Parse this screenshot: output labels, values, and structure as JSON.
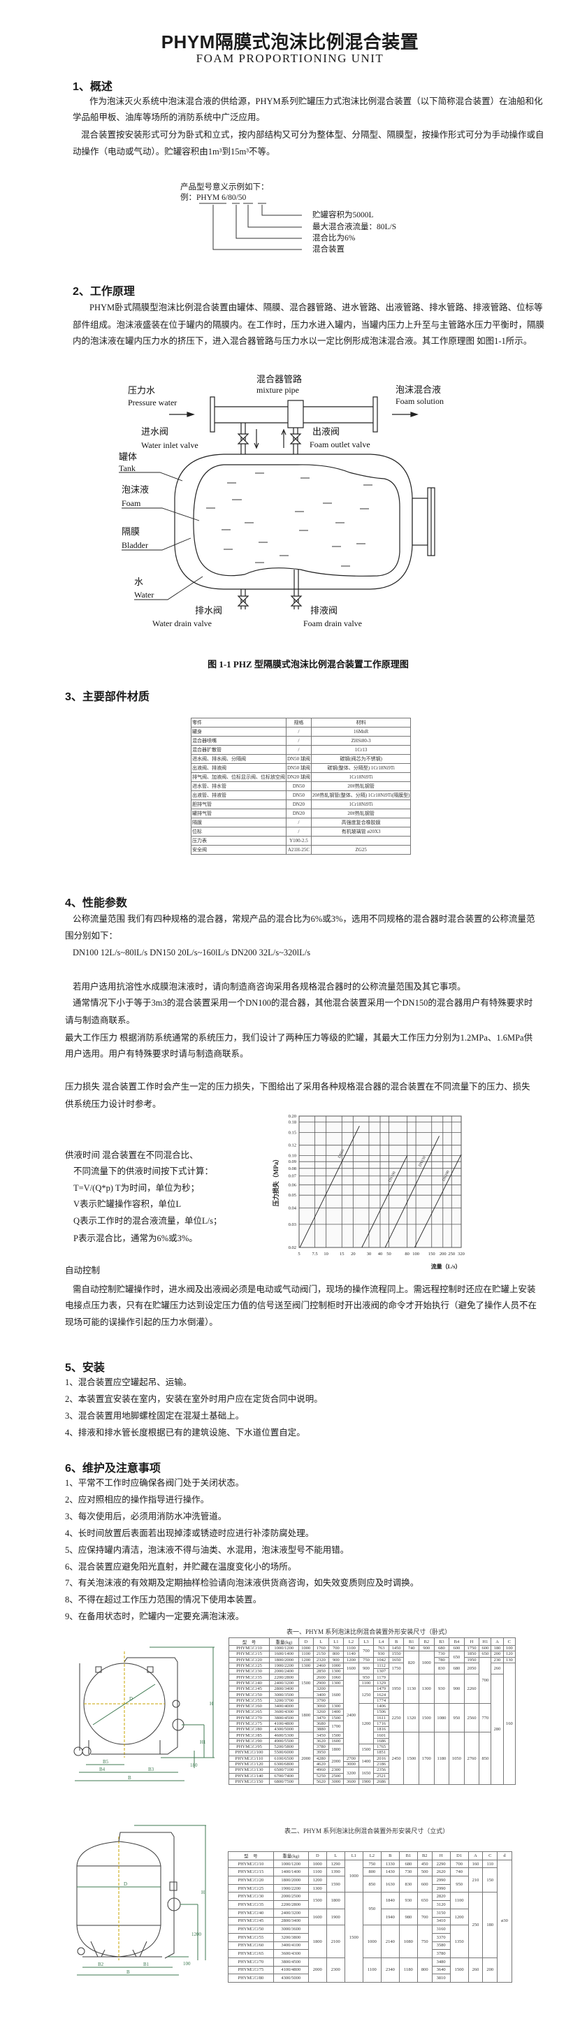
{
  "header": {
    "title": "PHYM隔膜式泡沫比例混合装置",
    "subtitle": "FOAM PROPORTIONING UNIT"
  },
  "s1": {
    "heading": "1、概述",
    "lines": [
      "作为泡沫灭火系统中泡沫混合液的供给源，PHYM系列贮罐压力式泡沫比例混合装置（以下简称混合装置）在油船和化",
      "学品船甲板、油库等场所的消防系统中广泛应用。",
      "混合装置按安装形式可分为卧式和立式，按内部结构又可分为整体型、分隔型、隔膜型，按操作形式可分为手动操作或自",
      "动操作（电动或气动）。贮罐容积由1m³到15m³不等。"
    ],
    "model": {
      "intro": "产品型号意义示例如下：",
      "example_prefix": "例：",
      "example_code": "PHYM",
      "example_ratio": "6",
      "example_flow": "80",
      "example_volume": "50",
      "items": [
        "贮罐容积为5000L",
        "最大混合液流量：80L/S",
        "混合比为6%",
        "混合装置"
      ]
    }
  },
  "s2": {
    "heading": "2、工作原理",
    "lines": [
      "PHYM卧式隔膜型泡沫比例混合装置由罐体、隔膜、混合器管路、进水管路、出液管路、排水管路、排液管路、位标等",
      "部件组成。泡沫液盛装在位于罐内的隔膜内。在工作时，压力水进入罐内，当罐内压力上升至与主管路水压力平衡时，隔膜",
      "内的泡沫液在罐内压力水的挤压下，进入混合器管路与压力水以一定比例形成泡沫混合液。其工作原理图 如图1-1所示。"
    ],
    "diagram": {
      "pressure_water_cn": "压力水",
      "pressure_water_en": "Pressure water",
      "mixture_pipe_cn": "混合器管路",
      "mixture_pipe_en": "mixture pipe",
      "foam_solution_cn": "泡沫混合液",
      "foam_solution_en": "Foam solution",
      "inlet_valve_cn": "进水阀",
      "inlet_valve_en": "Water inlet valve",
      "outlet_valve_cn": "出液阀",
      "outlet_valve_en": "Foam outlet valve",
      "tank_cn": "罐体",
      "tank_en": "Tank",
      "foam_cn": "泡沫液",
      "foam_en": "Foam",
      "bladder_cn": "隔膜",
      "bladder_en": "Bladder",
      "water_cn": "水",
      "water_en": "Water",
      "water_drain_cn": "排水阀",
      "water_drain_en": "Water drain valve",
      "foam_drain_cn": "排液阀",
      "foam_drain_en": "Foam drain valve",
      "caption": "图 1-1 PHZ 型隔膜式泡沫比例混合装置工作原理图"
    }
  },
  "s3": {
    "heading": "3、主要部件材质",
    "table": {
      "header": [
        "零件",
        "规格",
        "材料"
      ],
      "rows": [
        [
          "罐身",
          "/",
          "16MnR"
        ],
        [
          "混合器喷嘴",
          "/",
          "ZHSi80-3"
        ],
        [
          "混合器扩散管",
          "/",
          "1Cr13"
        ],
        [
          "进水阀、排水阀、分隔阀",
          "DN50 球阀",
          "碳钢(阀芯为不锈钢)"
        ],
        [
          "出液阀、排液阀",
          "DN50 球阀",
          "碳钢(整体、分隔型) 1Cr18Ni9Ti"
        ],
        [
          "排气阀、加液阀、位标显示阀、位标放空阀",
          "DN20 球阀",
          "1Cr18Ni9Ti"
        ],
        [
          "进水管、排水管",
          "DN50",
          "20#热轧钢管"
        ],
        [
          "出液管、排液管",
          "DN50",
          "20#热轧钢管(整体、分隔) 1Cr18Ni9Ti(隔膜型)"
        ],
        [
          "胆排气管",
          "DN20",
          "1Cr18Ni9Ti"
        ],
        [
          "罐排气管",
          "DN20",
          "20#热轧钢管"
        ],
        [
          "隔膜",
          "/",
          "高强度复合橡胶膜"
        ],
        [
          "位标",
          "/",
          "有机玻璃管 ø20X3"
        ],
        [
          "压力表",
          "Y100-2.5",
          ""
        ],
        [
          "安全阀",
          "A21H-25C",
          "ZG25"
        ]
      ]
    }
  },
  "s4": {
    "heading": "4、性能参数",
    "lines": [
      "公称流量范围  我们有四种规格的混合器，常规产品的混合比为6%或3%，选用不同规格的混合器时混合装置的公称流量范",
      "围分别如下：",
      "DN100  12L/s~80lL/s   DN150  20L/s~160lL/s   DN200  32L/s~320lL/s",
      "若用户选用抗溶性水成膜泡沫液时，请向制造商咨询采用各规格混合器时的公称流量范围及其它事项。",
      "通常情况下小于等于3m3的混合装置采用一个DN100的混合器，其他混合装置采用一个DN150的混合器用户有特殊要求时",
      "请与制造商联系。",
      "最大工作压力  根据消防系统通常的系统压力，我们设计了两种压力等级的贮罐，其最大工作压力分别为1.2MPa、1.6MPa供",
      "用户选用。用户有特殊要求时请与制造商联系。",
      "压力损失  混合装置工作时会产生一定的压力损失，下图给出了采用各种规格混合器的混合装置在不同流量下的压力、损失",
      "供系统压力设计时参考。"
    ],
    "supply": [
      "供液时间  混合装置在不同混合比、",
      "不同流量下的供液时间按下式计算：",
      "T=V/(Q*p)     T为时间，单位为秒；",
      "V表示贮罐操作容积，单位L",
      "Q表示工作时的混合液流量，单位L/s；",
      "P表示混合比，通常为6%或3%。"
    ],
    "auto_heading": "自动控制",
    "auto_lines": [
      "需自动控制贮罐操作时，进水阀及出液阀必须是电动或气动阀门，现场的操作流程同上。需远程控制时还应在贮罐上安装",
      "电接点压力表，只有在贮罐压力达到设定压力值的信号送至阀门控制柜时开出液阀的命令才开始执行（避免了操作人员不在",
      "现场可能的误操作引起的压力水倒灌）。"
    ]
  },
  "chart_data": {
    "type": "line",
    "title": "",
    "xlabel": "流量（L/s）",
    "ylabel": "压力损失（MPa）",
    "xscale": "log",
    "yscale": "log",
    "xlim": [
      5,
      320
    ],
    "ylim": [
      0.02,
      0.2
    ],
    "grid": true,
    "xticks": [
      5,
      7.5,
      10,
      15,
      20,
      30,
      40,
      50,
      80,
      100,
      150,
      200,
      250,
      320
    ],
    "xtick_labels": [
      "5",
      "7.5",
      "10",
      "15",
      "20",
      "30",
      "40",
      "50",
      "80",
      "100",
      "150",
      "200",
      "250",
      "320"
    ],
    "yticks": [
      0.02,
      0.03,
      0.04,
      0.05,
      0.06,
      0.07,
      0.08,
      0.09,
      0.1,
      0.12,
      0.15,
      0.18,
      0.2
    ],
    "ytick_labels": [
      "0.02",
      "0.03",
      "0.04",
      "0.05",
      "0.06",
      "0.07",
      "0.08",
      "0.09",
      "0.10",
      "0.12",
      "0.15",
      "0.18",
      "0.20"
    ],
    "series": [
      {
        "name": "DN65",
        "points": [
          [
            5.1,
            0.02
          ],
          [
            23.5,
            0.168
          ]
        ]
      },
      {
        "name": "DN100",
        "points": [
          [
            25,
            0.02
          ],
          [
            80,
            0.1
          ]
        ]
      },
      {
        "name": "DN150",
        "points": [
          [
            45.5,
            0.02
          ],
          [
            182,
            0.141
          ]
        ]
      },
      {
        "name": "DN200",
        "points": [
          [
            97,
            0.02
          ],
          [
            320,
            0.102
          ]
        ]
      }
    ]
  },
  "s5": {
    "heading": "5、安装",
    "items": [
      "1、混合装置应空罐起吊、运输。",
      "2、本装置宜安装在室内，安装在室外时用户应在定货合同中说明。",
      "3、混合装置用地脚螺栓固定在混凝土基础上。",
      "4、排液和排水管长度根据已有的建筑设施、下水道位置自定。"
    ]
  },
  "s6": {
    "heading": "6、维护及注意事项",
    "items": [
      "1、平常不工作时应确保各阀门处于关闭状态。",
      "2、应对照相应的操作指导进行操作。",
      "3、每次使用后，必须用消防水冲洗管道。",
      "4、长时间放置后表面若出现掉漆或锈迹时应进行补漆防腐处理。",
      "5、应保持罐内清洁，泡沫液不得与油类、水混用，泡沫液型号不能用错。",
      "6、混合装置应避免阳光直射，并贮藏在温度变化小的场所。",
      "7、有关泡沫液的有效期及定期抽样检验请向泡沫液供货商咨询，如失效变质则应及时调换。",
      "8、不得在超过工作压力范围的情况下使用本装置。",
      "9、在备用状态时，贮罐内一定要充满泡沫液。"
    ]
  },
  "table1": {
    "caption": "表一、PHYM 系列泡沫比例混合装置外形安装尺寸（卧式）",
    "header": [
      "型　号",
      "重量(kg)",
      "D",
      "L",
      "L1",
      "L2",
      "L3",
      "L4",
      "B",
      "B1",
      "B2",
      "B3",
      "B4",
      "H",
      "H1",
      "A",
      "C"
    ],
    "rows": [
      [
        "PHYM□/□/10",
        "1000/1200",
        "1000",
        "1760",
        "700",
        "1100",
        "700",
        "763",
        "1450",
        "740",
        "900",
        "680",
        "600",
        "1750",
        "600",
        "180",
        "100"
      ],
      [
        "PHYM□/□/15",
        "1600/1400",
        "1100",
        "2150",
        "800",
        "1140",
        null,
        "930",
        "1550",
        "820",
        "1000",
        "730",
        "650",
        "1850",
        "650",
        "200",
        "120"
      ],
      [
        "PHYM□/□/20",
        "1800/2000",
        "1200",
        "2320",
        "900",
        "1200",
        "750",
        "1042",
        "1650",
        null,
        null,
        "780",
        null,
        "1950",
        "700",
        "230",
        "130"
      ],
      [
        "PHYM□/□/25",
        "1900/2200",
        "1300",
        "2460",
        "1000",
        "1600",
        "900",
        "1112",
        "1750",
        null,
        null,
        "830",
        "680",
        "2050",
        null,
        "260",
        "160"
      ],
      [
        "PHYM□/□/30",
        "2000/2400",
        "1500",
        "2850",
        "1300",
        null,
        null,
        "1307",
        null,
        null,
        null,
        null,
        null,
        null,
        null,
        null,
        null
      ],
      [
        "PHYM□/□/35",
        "2200/2800",
        null,
        "2600",
        "1060",
        "2400",
        "950",
        "1179",
        "1950",
        "1130",
        "1300",
        "930",
        "900",
        "2260",
        null,
        "280",
        null
      ],
      [
        "PHYM□/□/40",
        "2400/3200",
        null,
        "2900",
        "1300",
        null,
        "1100",
        "1329",
        null,
        null,
        null,
        null,
        null,
        null,
        null,
        null,
        null
      ],
      [
        "PHYM□/□/45",
        "2800/3400",
        null,
        "3200",
        "1600",
        null,
        "1250",
        "1479",
        null,
        null,
        null,
        null,
        null,
        null,
        null,
        null,
        null
      ],
      [
        "PHYM□/□/50",
        "3000/3500",
        null,
        "3400",
        null,
        null,
        null,
        "1624",
        null,
        null,
        null,
        null,
        null,
        null,
        null,
        null,
        null
      ],
      [
        "PHYM□/□/55",
        "3200/3700",
        "1800",
        "3790",
        null,
        null,
        null,
        "1774",
        null,
        null,
        null,
        null,
        null,
        null,
        null,
        null,
        null
      ],
      [
        "PHYM□/□/60",
        "3400/4000",
        null,
        "3060",
        "1300",
        null,
        "1200",
        "1406",
        "2250",
        "1320",
        "1500",
        "1080",
        "950",
        "2560",
        "770",
        null,
        null
      ],
      [
        "PHYM□/□/65",
        "3600/4300",
        null,
        "3260",
        "1400",
        null,
        null,
        "1506",
        null,
        null,
        null,
        null,
        null,
        null,
        null,
        null,
        null
      ],
      [
        "PHYM□/□/70",
        "3800/4500",
        null,
        "3470",
        "1500",
        null,
        null,
        "1611",
        null,
        null,
        null,
        null,
        null,
        null,
        null,
        null,
        null
      ],
      [
        "PHYM□/□/75",
        "4100/4800",
        null,
        "3680",
        "1700",
        null,
        null,
        "1716",
        null,
        null,
        null,
        null,
        null,
        null,
        null,
        null,
        null
      ],
      [
        "PHYM□/□/80",
        "4300/5000",
        null,
        "3880",
        null,
        null,
        null,
        "1816",
        null,
        null,
        null,
        null,
        null,
        null,
        null,
        null,
        null
      ],
      [
        "PHYM□/□/85",
        "4600/5300",
        "2000",
        "3450",
        "1500",
        null,
        null,
        "1601",
        "2450",
        "1500",
        "1700",
        "1180",
        "1050",
        "2760",
        "850",
        null,
        null
      ],
      [
        "PHYM□/□/90",
        "4900/5500",
        null,
        "3620",
        "1600",
        null,
        null,
        "1686",
        null,
        null,
        null,
        null,
        null,
        null,
        null,
        null,
        null
      ],
      [
        "PHYM□/□/95",
        "5200/5800",
        null,
        "3780",
        "1800",
        null,
        "1500",
        "1765",
        null,
        null,
        null,
        null,
        null,
        null,
        null,
        null,
        null
      ],
      [
        "PHYM□/□/100",
        "5500/6000",
        null,
        "3950",
        null,
        null,
        null,
        "1851",
        null,
        null,
        null,
        null,
        null,
        null,
        null,
        null,
        null
      ],
      [
        "PHYM□/□/110",
        "6100/6500",
        null,
        "4280",
        "2000",
        "2700",
        "1400",
        "2016",
        null,
        null,
        null,
        null,
        null,
        null,
        null,
        null,
        null
      ],
      [
        "PHYM□/□/120",
        "6300/6800",
        null,
        "4620",
        null,
        "3000",
        null,
        "2186",
        null,
        null,
        null,
        null,
        null,
        null,
        null,
        null,
        null
      ],
      [
        "PHYM□/□/130",
        "6500/7100",
        null,
        "4960",
        "2300",
        "3200",
        "1650",
        "2356",
        null,
        null,
        null,
        null,
        null,
        null,
        null,
        null,
        null
      ],
      [
        "PHYM□/□/140",
        "6700/7400",
        null,
        "5250",
        "2500",
        null,
        null,
        "2521",
        null,
        null,
        null,
        null,
        null,
        null,
        null,
        null,
        null
      ],
      [
        "PHYM□/□/150",
        "6800/7500",
        null,
        "5620",
        "3000",
        "3600",
        "1900",
        "2686",
        null,
        null,
        null,
        null,
        null,
        null,
        null,
        null,
        null
      ]
    ]
  },
  "table2": {
    "caption": "表二、PHYM 系列泡沫比例混合装置外形安装尺寸（立式）",
    "header": [
      "型　号",
      "重量(kg)",
      "D",
      "L",
      "L1",
      "L2",
      "B",
      "B1",
      "B2",
      "H",
      "D1",
      "A",
      "C",
      "d"
    ],
    "rows": [
      [
        "PHYM□/□/10",
        "1000/1200",
        "1000",
        "1290",
        "1000",
        "750",
        "1330",
        "680",
        "450",
        "2290",
        "700",
        "160",
        "110",
        "ø30"
      ],
      [
        "PHYM□/□/15",
        "1400/1400",
        "1100",
        "1390",
        null,
        "800",
        "1430",
        "730",
        "500",
        "2620",
        "740",
        "210",
        "150",
        null
      ],
      [
        "PHYM□/□/20",
        "1800/2000",
        "1200",
        "1590",
        null,
        "850",
        "1630",
        "830",
        "600",
        "2990",
        "950",
        null,
        null,
        null
      ],
      [
        "PHYM□/□/25",
        "1900/2200",
        "1300",
        null,
        null,
        null,
        null,
        null,
        null,
        "2990",
        null,
        null,
        null,
        null
      ],
      [
        "PHYM□/□/30",
        "2000/2500",
        "1500",
        "1800",
        "1500",
        "950",
        "1840",
        "930",
        "650",
        "2820",
        "1100",
        "250",
        "180",
        null
      ],
      [
        "PHYM□/□/35",
        "2200/2800",
        null,
        null,
        null,
        null,
        null,
        null,
        null,
        "3120",
        null,
        null,
        null,
        null
      ],
      [
        "PHYM□/□/40",
        "2400/3200",
        "1600",
        "1900",
        null,
        null,
        "1940",
        "980",
        "700",
        "3150",
        "1200",
        null,
        null,
        null
      ],
      [
        "PHYM□/□/45",
        "2800/3400",
        null,
        null,
        null,
        null,
        null,
        null,
        null,
        "3410",
        null,
        null,
        null,
        null
      ],
      [
        "PHYM□/□/50",
        "3000/3600",
        "1800",
        "2100",
        null,
        "1000",
        "2140",
        "1080",
        "750",
        "3160",
        "1350",
        null,
        null,
        null
      ],
      [
        "PHYM□/□/55",
        "3200/3800",
        null,
        null,
        null,
        null,
        null,
        null,
        null,
        "3370",
        null,
        null,
        null,
        null
      ],
      [
        "PHYM□/□/60",
        "3400/4100",
        null,
        null,
        null,
        null,
        null,
        null,
        null,
        "3580",
        null,
        null,
        null,
        null
      ],
      [
        "PHYM□/□/65",
        "3600/4300",
        null,
        null,
        null,
        null,
        null,
        null,
        null,
        "3780",
        null,
        null,
        null,
        null
      ],
      [
        "PHYM□/□/70",
        "3800/4500",
        "2000",
        "2300",
        null,
        "1100",
        "2340",
        "1180",
        "800",
        "3480",
        "1500",
        "260",
        "200",
        null
      ],
      [
        "PHYM□/□/75",
        "4100/4800",
        null,
        null,
        null,
        null,
        null,
        null,
        null,
        "3640",
        null,
        null,
        null,
        null
      ],
      [
        "PHYM□/□/80",
        "4300/5000",
        null,
        null,
        null,
        null,
        null,
        null,
        null,
        "3810",
        null,
        null,
        null,
        null
      ]
    ]
  },
  "drawings": {
    "horizontal": {
      "D": "D",
      "B": "B",
      "B3": "B3",
      "B4": "B4",
      "B5": "B5",
      "H": "H",
      "H1": "H1",
      "h180": "180"
    },
    "vertical": {
      "D": "D",
      "B": "B",
      "B1": "B1",
      "B2": "B2",
      "H": "H",
      "h1200": "1200",
      "h100": "100"
    },
    "line_color": "#3a3a3a",
    "dim_color": "#3f7a52",
    "axis_color": "#c9a400"
  }
}
